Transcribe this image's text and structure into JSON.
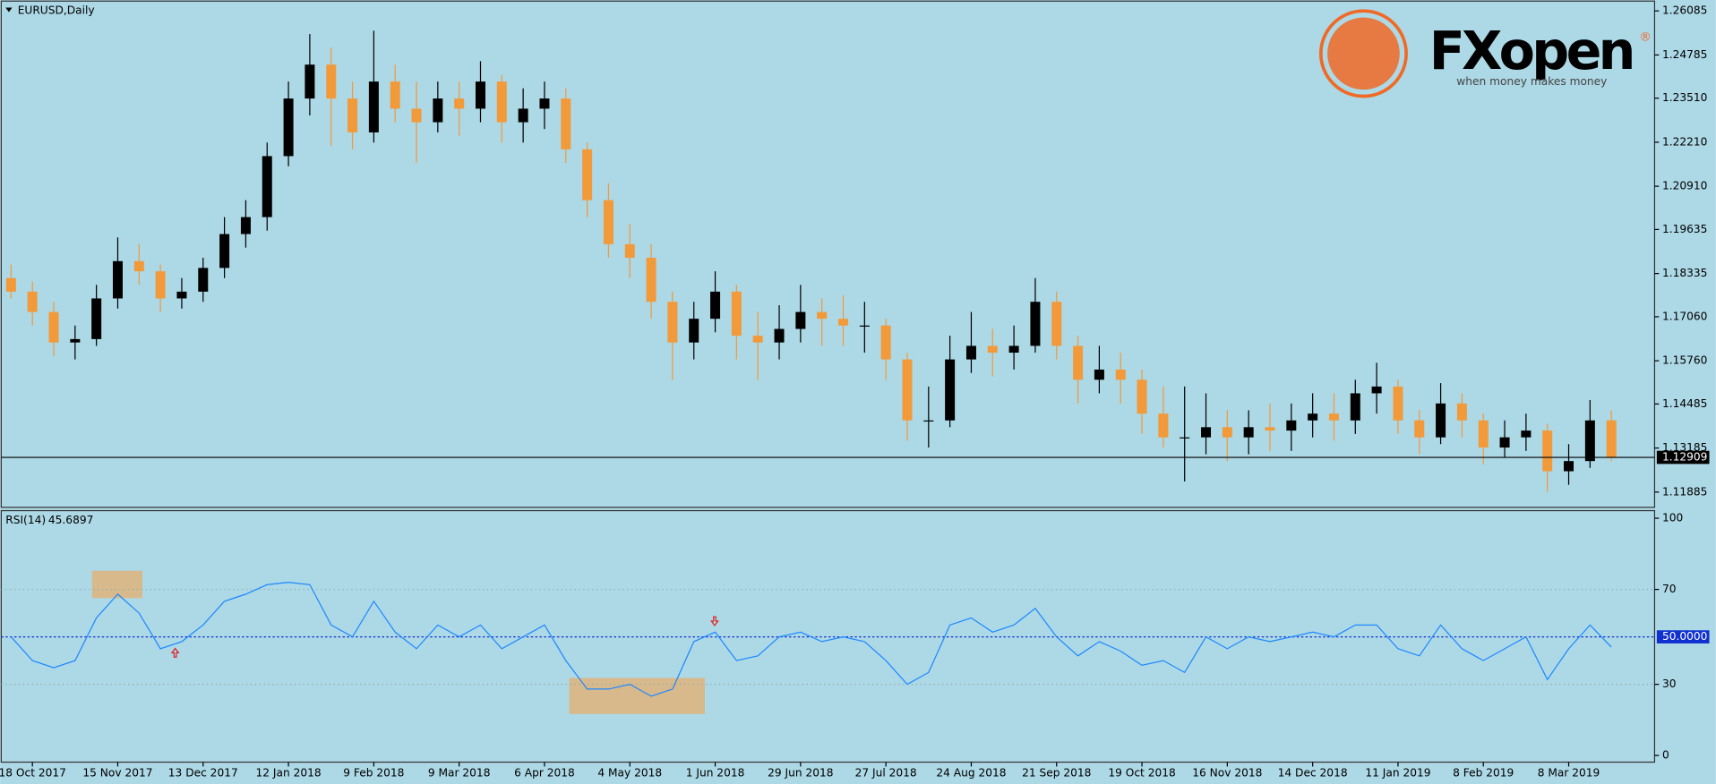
{
  "header": {
    "title": "EURUSD,Daily"
  },
  "logo": {
    "brand": "FXopen",
    "tagline": "when money makes money",
    "mark": "®"
  },
  "chart_data": [
    {
      "type": "candlestick",
      "categories": [
        null,
        "18 Oct 2017",
        null,
        null,
        null,
        "15 Nov 2017",
        null,
        null,
        null,
        "13 Dec 2017",
        null,
        null,
        null,
        "12 Jan 2018",
        null,
        null,
        null,
        "9 Feb 2018",
        null,
        null,
        null,
        "9 Mar 2018",
        null,
        null,
        null,
        "6 Apr 2018",
        null,
        null,
        null,
        "4 May 2018",
        null,
        null,
        null,
        "1 Jun 2018",
        null,
        null,
        null,
        "29 Jun 2018",
        null,
        null,
        null,
        "27 Jul 2018",
        null,
        null,
        null,
        "24 Aug 2018",
        null,
        null,
        null,
        "21 Sep 2018",
        null,
        null,
        null,
        "19 Oct 2018",
        null,
        null,
        null,
        "16 Nov 2018",
        null,
        null,
        null,
        "14 Dec 2018",
        null,
        null,
        null,
        "11 Jan 2019",
        null,
        null,
        null,
        "8 Feb 2019",
        null,
        null,
        null,
        "8 Mar 2019",
        null,
        null
      ],
      "open": [
        1.182,
        1.178,
        1.172,
        1.163,
        1.164,
        1.176,
        1.187,
        1.184,
        1.176,
        1.178,
        1.185,
        1.195,
        1.2,
        1.218,
        1.235,
        1.245,
        1.235,
        1.225,
        1.24,
        1.232,
        1.228,
        1.235,
        1.232,
        1.24,
        1.228,
        1.232,
        1.235,
        1.22,
        1.205,
        1.192,
        1.188,
        1.175,
        1.163,
        1.17,
        1.178,
        1.165,
        1.163,
        1.167,
        1.172,
        1.17,
        1.168,
        1.168,
        1.158,
        1.14,
        1.14,
        1.158,
        1.162,
        1.16,
        1.162,
        1.175,
        1.162,
        1.152,
        1.155,
        1.152,
        1.142,
        1.135,
        1.135,
        1.138,
        1.135,
        1.138,
        1.137,
        1.14,
        1.142,
        1.14,
        1.148,
        1.15,
        1.14,
        1.135,
        1.145,
        1.14,
        1.132,
        1.135,
        1.137,
        1.125,
        1.128,
        1.14
      ],
      "high": [
        1.186,
        1.181,
        1.175,
        1.168,
        1.18,
        1.194,
        1.192,
        1.186,
        1.182,
        1.188,
        1.2,
        1.205,
        1.222,
        1.24,
        1.254,
        1.25,
        1.24,
        1.255,
        1.245,
        1.24,
        1.24,
        1.24,
        1.246,
        1.242,
        1.238,
        1.24,
        1.238,
        1.222,
        1.21,
        1.198,
        1.192,
        1.178,
        1.175,
        1.184,
        1.18,
        1.172,
        1.174,
        1.18,
        1.176,
        1.177,
        1.175,
        1.17,
        1.16,
        1.15,
        1.165,
        1.172,
        1.167,
        1.168,
        1.182,
        1.178,
        1.165,
        1.162,
        1.16,
        1.155,
        1.15,
        1.15,
        1.148,
        1.143,
        1.143,
        1.145,
        1.145,
        1.148,
        1.148,
        1.152,
        1.157,
        1.152,
        1.143,
        1.151,
        1.148,
        1.142,
        1.14,
        1.142,
        1.139,
        1.133,
        1.146,
        1.143
      ],
      "low": [
        1.176,
        1.168,
        1.159,
        1.158,
        1.162,
        1.173,
        1.18,
        1.172,
        1.173,
        1.175,
        1.182,
        1.191,
        1.196,
        1.215,
        1.23,
        1.221,
        1.22,
        1.222,
        1.228,
        1.216,
        1.225,
        1.224,
        1.228,
        1.222,
        1.222,
        1.226,
        1.216,
        1.2,
        1.188,
        1.182,
        1.17,
        1.152,
        1.158,
        1.166,
        1.158,
        1.152,
        1.158,
        1.163,
        1.162,
        1.162,
        1.16,
        1.152,
        1.134,
        1.132,
        1.138,
        1.154,
        1.153,
        1.155,
        1.16,
        1.158,
        1.145,
        1.148,
        1.145,
        1.136,
        1.132,
        1.122,
        1.13,
        1.128,
        1.13,
        1.131,
        1.131,
        1.135,
        1.134,
        1.136,
        1.142,
        1.136,
        1.13,
        1.133,
        1.135,
        1.127,
        1.129,
        1.131,
        1.119,
        1.121,
        1.126,
        1.128
      ],
      "close": [
        1.178,
        1.172,
        1.163,
        1.164,
        1.176,
        1.187,
        1.184,
        1.176,
        1.178,
        1.185,
        1.195,
        1.2,
        1.218,
        1.235,
        1.245,
        1.235,
        1.225,
        1.24,
        1.232,
        1.228,
        1.235,
        1.232,
        1.24,
        1.228,
        1.232,
        1.235,
        1.22,
        1.205,
        1.192,
        1.188,
        1.175,
        1.163,
        1.17,
        1.178,
        1.165,
        1.163,
        1.167,
        1.172,
        1.17,
        1.168,
        1.168,
        1.158,
        1.14,
        1.14,
        1.158,
        1.162,
        1.16,
        1.162,
        1.175,
        1.162,
        1.152,
        1.155,
        1.152,
        1.142,
        1.135,
        1.135,
        1.138,
        1.135,
        1.138,
        1.137,
        1.14,
        1.142,
        1.14,
        1.148,
        1.15,
        1.14,
        1.135,
        1.145,
        1.14,
        1.132,
        1.135,
        1.137,
        1.125,
        1.128,
        1.14,
        1.12909
      ],
      "up_color": "#000000",
      "down_color": "#f29a3a",
      "ylim": [
        1.11434,
        1.26375
      ],
      "yticks": [
        1.26085,
        1.24785,
        {
          "value": 1.2351,
          "label": "1.23510"
        },
        {
          "value": 1.2221,
          "label": "1.22210"
        },
        {
          "value": 1.2091,
          "label": "1.20910"
        },
        1.19635,
        1.18335,
        {
          "value": 1.1706,
          "label": "1.17060"
        },
        {
          "value": 1.1576,
          "label": "1.15760"
        },
        1.14485,
        1.13185,
        1.11885
      ],
      "last_price": 1.12909
    },
    {
      "type": "line",
      "title": "RSI(14)",
      "current": 45.6897,
      "color": "#1e88ff",
      "values": [
        50,
        40,
        37,
        40,
        58,
        68,
        60,
        45,
        48,
        55,
        65,
        68,
        72,
        73,
        72,
        55,
        50,
        65,
        52,
        45,
        55,
        50,
        55,
        45,
        50,
        55,
        40,
        28,
        28,
        30,
        25,
        28,
        48,
        52,
        40,
        42,
        50,
        52,
        48,
        50,
        48,
        40,
        30,
        35,
        55,
        58,
        52,
        55,
        62,
        50,
        42,
        48,
        44,
        38,
        40,
        35,
        50,
        45,
        50,
        48,
        50,
        52,
        50,
        55,
        55,
        45,
        42,
        55,
        45,
        40,
        45,
        50,
        32,
        45,
        55,
        45.6897
      ],
      "ylim": [
        -2.8,
        103.2
      ],
      "yticks": [
        0,
        30,
        70,
        100
      ],
      "levels": [
        30,
        70
      ],
      "midline": {
        "value": 50,
        "label": "50.0000"
      }
    }
  ]
}
